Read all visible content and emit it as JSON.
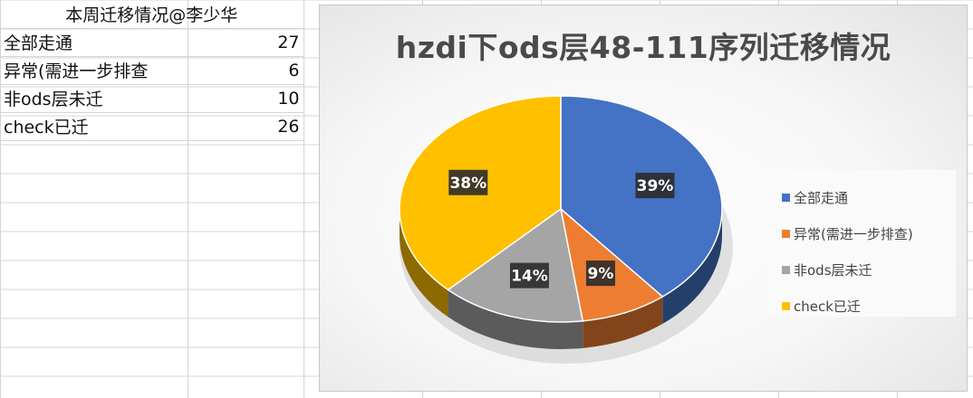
{
  "sheet": {
    "header": "本周迁移情况@李少华",
    "rows": [
      {
        "label": "全部走通",
        "value": "27"
      },
      {
        "label": "异常(需进一步排查",
        "value": "6"
      },
      {
        "label": "非ods层未迁",
        "value": "10"
      },
      {
        "label": "check已迁",
        "value": "26"
      }
    ]
  },
  "chart_data": {
    "type": "pie",
    "title": "hzdi下ods层48-111序列迁移情况",
    "categories": [
      "全部走通",
      "异常(需进一步排查)",
      "非ods层未迁",
      "check已迁"
    ],
    "values": [
      27,
      6,
      10,
      26
    ],
    "percent_labels": [
      "39%",
      "9%",
      "14%",
      "38%"
    ],
    "colors": [
      "#4472C4",
      "#ED7D31",
      "#A5A5A5",
      "#FFC000"
    ],
    "legend_position": "right",
    "style": "3d"
  }
}
